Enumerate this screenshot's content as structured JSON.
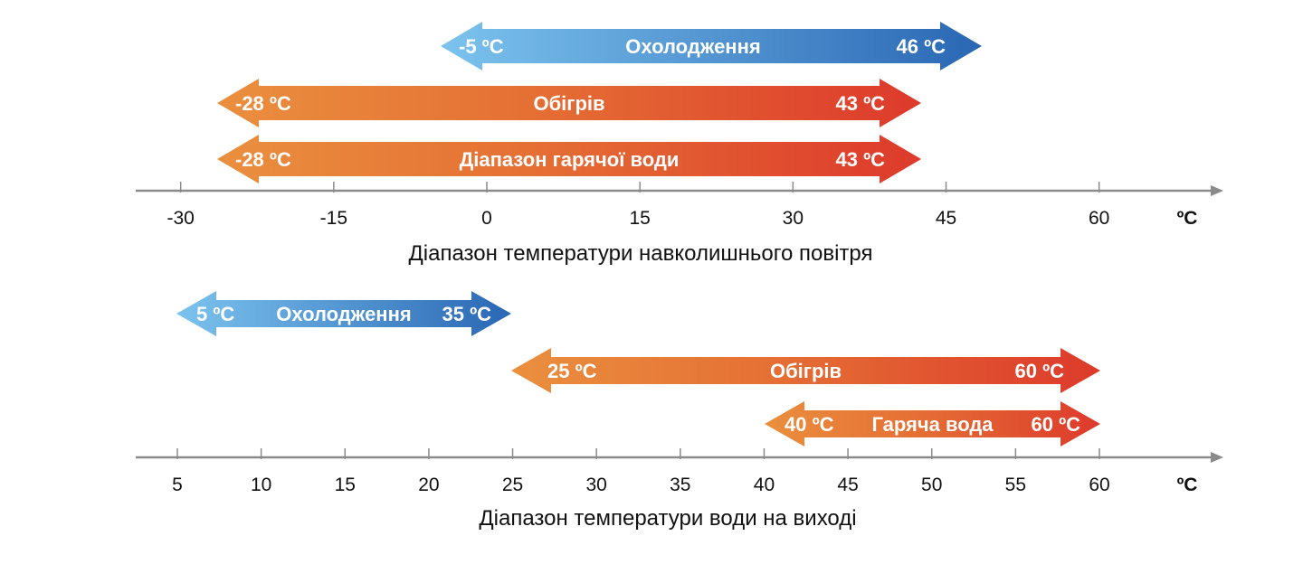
{
  "colors": {
    "cool_start": "#7cc3ee",
    "cool_end": "#2a67b4",
    "heat_start": "#ea8f3e",
    "heat_end": "#dd3a2c",
    "axis": "#8a8a8a"
  },
  "chart_data": [
    {
      "type": "range",
      "title": "Діапазон температури навколишнього повітря",
      "unit": "ºC",
      "ticks": [
        "-30",
        "-15",
        "0",
        "15",
        "30",
        "45",
        "60"
      ],
      "tick_values": [
        -30,
        -15,
        0,
        15,
        30,
        45,
        60
      ],
      "ranges": [
        {
          "name": "Охолодження",
          "min": -5,
          "max": 46,
          "min_label": "-5 ºC",
          "max_label": "46 ºC",
          "scheme": "cool"
        },
        {
          "name": "Обігрів",
          "min": -28,
          "max": 43,
          "min_label": "-28 ºC",
          "max_label": "43 ºC",
          "scheme": "heat"
        },
        {
          "name": "Діапазон гарячої води",
          "min": -28,
          "max": 43,
          "min_label": "-28 ºC",
          "max_label": "43 ºC",
          "scheme": "heat"
        }
      ]
    },
    {
      "type": "range",
      "title": "Діапазон температури води на виході",
      "unit": "ºC",
      "ticks": [
        "5",
        "10",
        "15",
        "20",
        "25",
        "30",
        "35",
        "40",
        "45",
        "50",
        "55",
        "60"
      ],
      "tick_values": [
        5,
        10,
        15,
        20,
        25,
        30,
        35,
        40,
        45,
        50,
        55,
        60
      ],
      "ranges": [
        {
          "name": "Охолодження",
          "min": 5,
          "max": 35,
          "min_label": "5 ºC",
          "max_label": "35 ºC",
          "scheme": "cool"
        },
        {
          "name": "Обігрів",
          "min": 25,
          "max": 60,
          "min_label": "25 ºC",
          "max_label": "60 ºC",
          "scheme": "heat"
        },
        {
          "name": "Гаряча вода",
          "min": 40,
          "max": 60,
          "min_label": "40 ºC",
          "max_label": "60 ºC",
          "scheme": "heat"
        }
      ]
    }
  ]
}
